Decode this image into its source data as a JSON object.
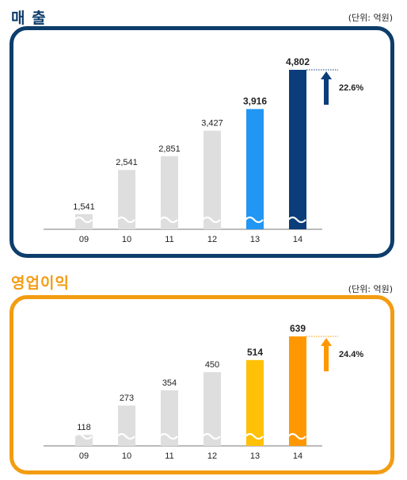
{
  "colors": {
    "sales_frame": "#0d3d6b",
    "sales_title": "#0d3d6b",
    "profit_frame": "#f39c12",
    "profit_title": "#f39c12",
    "gray_bar": "#dedede",
    "sales_13": "#2196f3",
    "sales_14": "#0b3d7a",
    "profit_13": "#ffc107",
    "profit_14": "#ff9800"
  },
  "icons": {
    "sales_arrow": "up-arrow-icon",
    "profit_arrow": "up-arrow-icon",
    "break": "axis-break-wave"
  },
  "chart_data": [
    {
      "type": "bar",
      "title": "매 출",
      "unit": "(단위: 억원)",
      "categories": [
        "09",
        "10",
        "11",
        "12",
        "13",
        "14"
      ],
      "values": [
        1541,
        2541,
        2851,
        3427,
        3916,
        4802
      ],
      "value_labels": [
        "1,541",
        "2,541",
        "2,851",
        "3,427",
        "3,916",
        "4,802"
      ],
      "ylim": [
        1200,
        4802
      ],
      "axis_break": true,
      "growth_label": "22.6%",
      "grid": false
    },
    {
      "type": "bar",
      "title": "영업이익",
      "unit": "(단위: 억원)",
      "categories": [
        "09",
        "10",
        "11",
        "12",
        "13",
        "14"
      ],
      "values": [
        118,
        273,
        354,
        450,
        514,
        639
      ],
      "value_labels": [
        "118",
        "273",
        "354",
        "450",
        "514",
        "639"
      ],
      "ylim": [
        60,
        639
      ],
      "axis_break": true,
      "growth_label": "24.4%",
      "grid": false
    }
  ]
}
